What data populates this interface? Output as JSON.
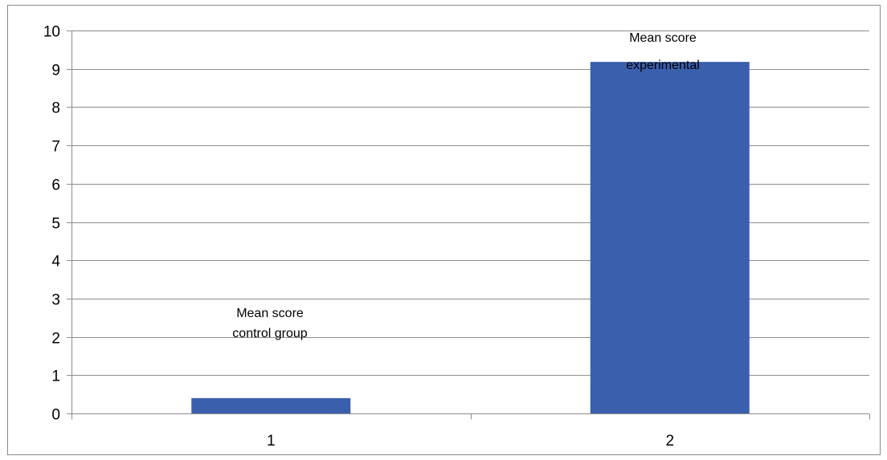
{
  "chart_data": {
    "type": "bar",
    "categories": [
      "1",
      "2"
    ],
    "values": [
      0.4,
      9.18
    ],
    "ylim": [
      0,
      10
    ],
    "yticks": [
      0,
      1,
      2,
      3,
      4,
      5,
      6,
      7,
      8,
      9,
      10
    ],
    "grid": true,
    "legend": "none",
    "title": "",
    "xlabel": "",
    "ylabel": "",
    "bar_color": "#3a5fad",
    "annotations": [
      {
        "category": "1",
        "lines": [
          "Mean score",
          "control group"
        ]
      },
      {
        "category": "2",
        "lines": [
          "Mean score",
          "experimental"
        ]
      }
    ]
  }
}
